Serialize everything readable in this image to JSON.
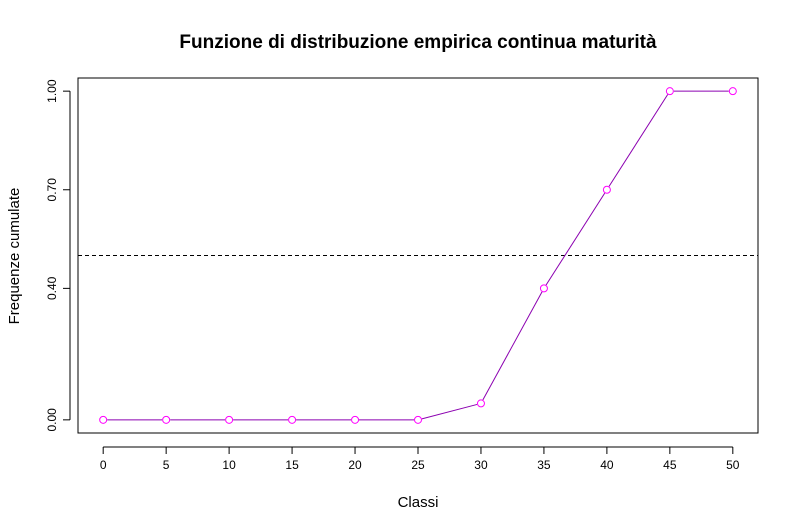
{
  "chart_data": {
    "type": "line",
    "title": "Funzione di distribuzione empirica continua maturità",
    "xlabel": "Classi",
    "ylabel": "Frequenze cumulate",
    "x": [
      0,
      5,
      10,
      15,
      20,
      25,
      30,
      35,
      40,
      45,
      50
    ],
    "series": [
      {
        "values": [
          0,
          0,
          0,
          0,
          0,
          0,
          0.05,
          0.4,
          0.7,
          1,
          1
        ]
      }
    ],
    "xticks": [
      "0",
      "5",
      "10",
      "15",
      "20",
      "25",
      "30",
      "35",
      "40",
      "45",
      "50"
    ],
    "yticks": [
      "0.00",
      "0.40",
      "0.70",
      "1.00"
    ],
    "xlim": [
      -2,
      52
    ],
    "ylim": [
      -0.04,
      1.04
    ],
    "reference_line": {
      "y": 0.5,
      "style": "dashed",
      "color": "#000000"
    },
    "line_color": "#8b00b0",
    "marker_color": "#ff00ff",
    "marker": "open-circle",
    "grid": false,
    "legend": "none"
  }
}
